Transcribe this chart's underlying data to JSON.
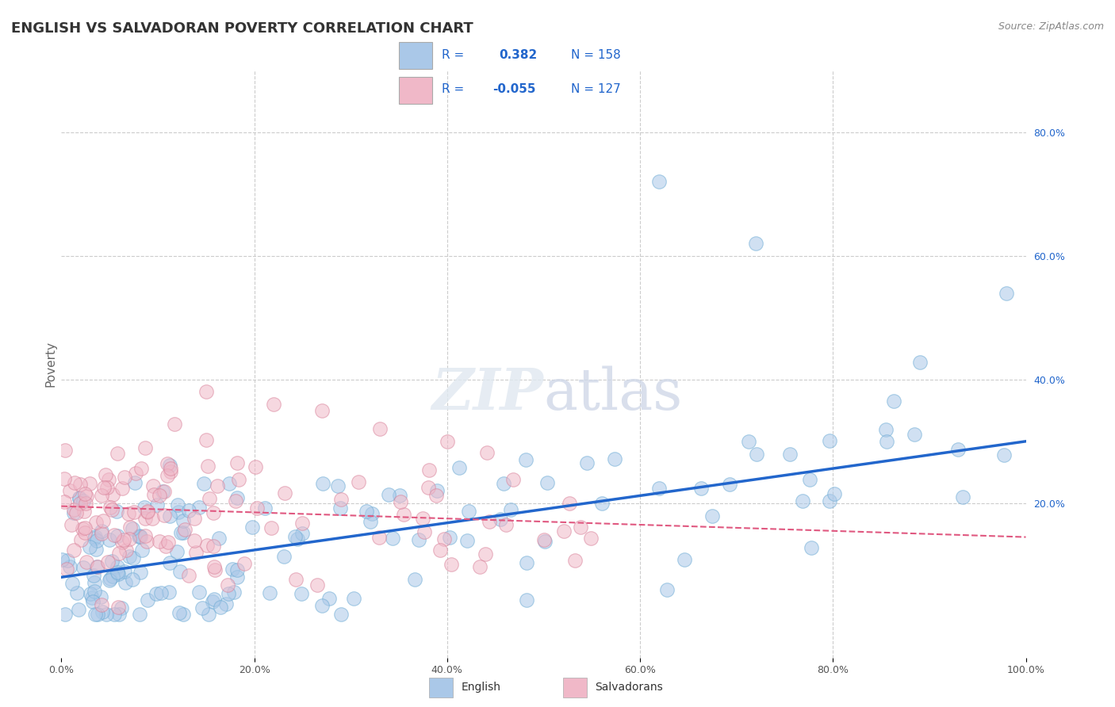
{
  "title": "ENGLISH VS SALVADORAN POVERTY CORRELATION CHART",
  "source": "Source: ZipAtlas.com",
  "ylabel": "Poverty",
  "xlim": [
    0.0,
    1.0
  ],
  "ylim": [
    -0.05,
    0.9
  ],
  "background_color": "#ffffff",
  "grid_color": "#cccccc",
  "english_color": "#aac8e8",
  "english_edge_color": "#6aaad4",
  "english_line_color": "#2266cc",
  "salvadoran_color": "#f0b8c8",
  "salvadoran_edge_color": "#d88098",
  "salvadoran_line_color": "#e05880",
  "legend_text_color": "#2266cc",
  "legend_label_color": "#333333",
  "R_english": 0.382,
  "N_english": 158,
  "R_salvadoran": -0.055,
  "N_salvadoran": 127,
  "watermark": "ZIPatlas",
  "eng_trend_x0": 0.0,
  "eng_trend_x1": 1.0,
  "eng_trend_y0": 0.08,
  "eng_trend_y1": 0.3,
  "sal_trend_x0": 0.0,
  "sal_trend_x1": 1.0,
  "sal_trend_y0": 0.195,
  "sal_trend_y1": 0.145
}
